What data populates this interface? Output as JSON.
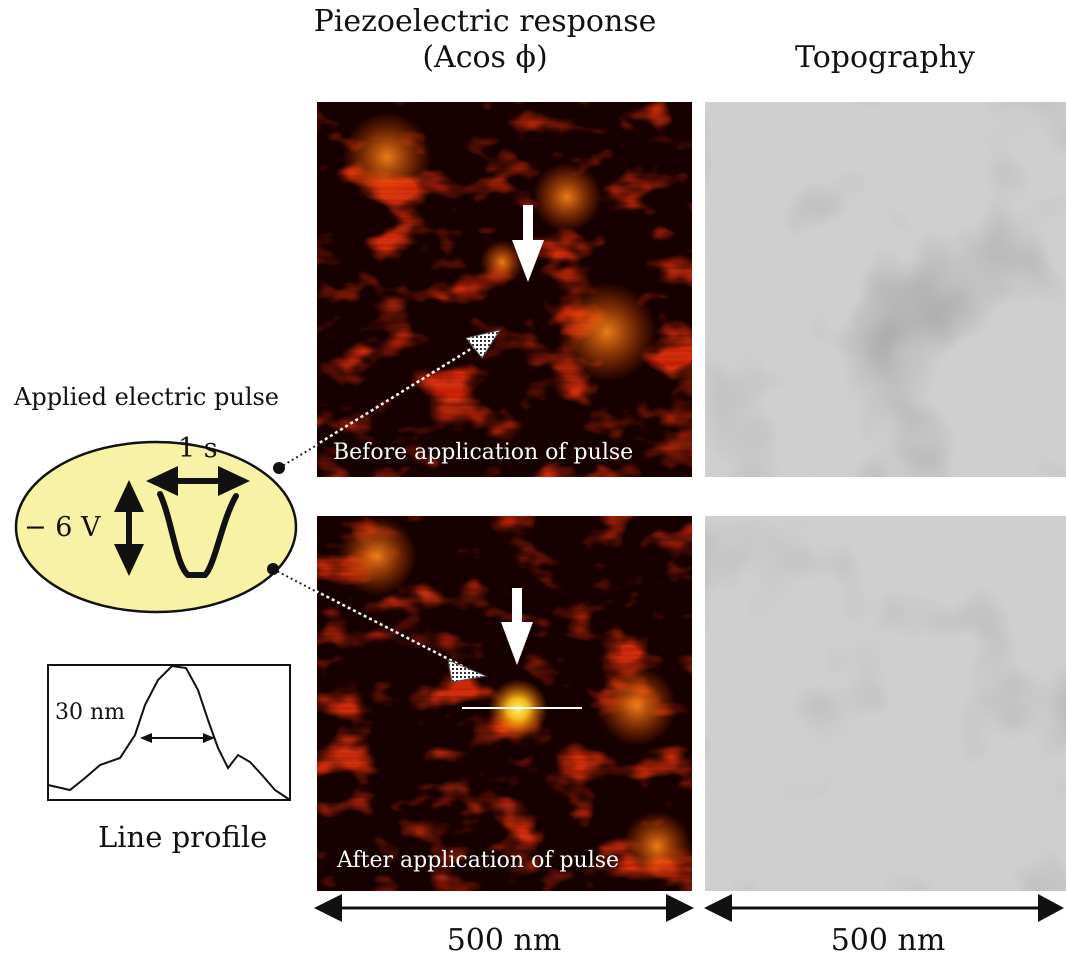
{
  "headers": {
    "piezo_line1": "Piezoelectric response",
    "piezo_line2": "(Acos ϕ)",
    "topography": "Topography"
  },
  "pulse": {
    "title": "Applied electric pulse",
    "voltage": "− 6 V",
    "duration": "1 s"
  },
  "profile": {
    "width_label": "30 nm",
    "title": "Line profile"
  },
  "panels": {
    "before_caption": "Before application of pulse",
    "after_caption": "After application of  pulse"
  },
  "scale": {
    "left": "500 nm",
    "right": "500 nm"
  },
  "colors": {
    "pulse_fill": "#f7f2a6",
    "piezo_dark": "#1a0000",
    "piezo_mid": "#c41a00",
    "piezo_bright": "#ffd24a",
    "topo_light": "#d4d4d4",
    "topo_dark": "#8a8a8a"
  }
}
